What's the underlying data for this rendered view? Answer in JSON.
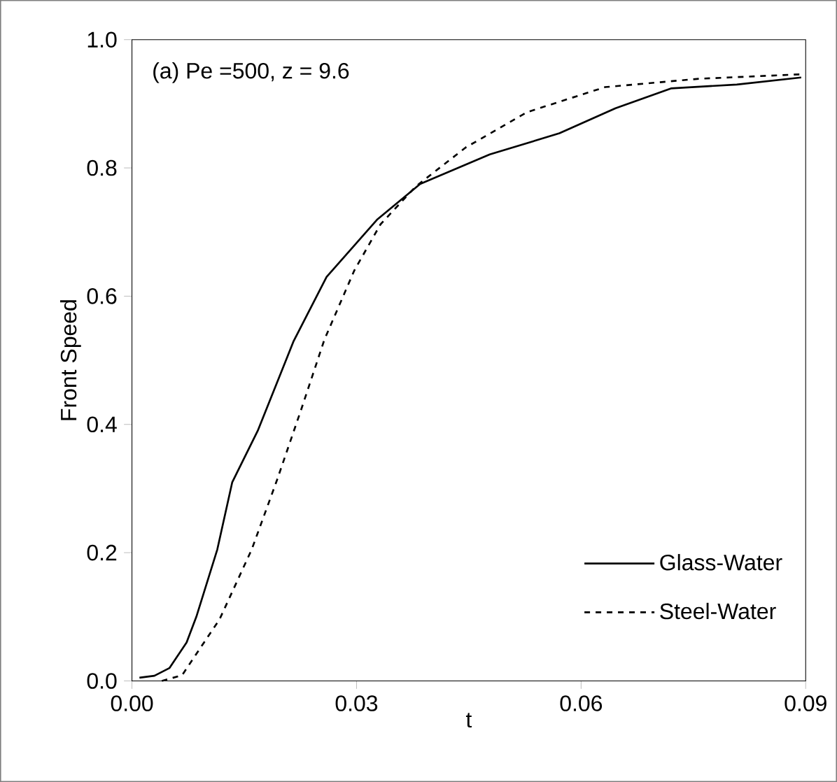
{
  "chart_data": {
    "type": "line",
    "xlabel": "t",
    "ylabel": "Front Speed",
    "annotations": [
      "(a) Pe =500, z = 9.6"
    ],
    "xlim": [
      0,
      0.09
    ],
    "ylim": [
      0,
      1.0
    ],
    "xticks": [
      {
        "value": 0,
        "label": "0.00"
      },
      {
        "value": 0.03,
        "label": "0.03"
      },
      {
        "value": 0.06,
        "label": "0.06"
      },
      {
        "value": 0.09,
        "label": "0.09"
      }
    ],
    "yticks": [
      {
        "value": 0,
        "label": "0.0"
      },
      {
        "value": 0.2,
        "label": "0.2"
      },
      {
        "value": 0.4,
        "label": "0.4"
      },
      {
        "value": 0.6,
        "label": "0.6"
      },
      {
        "value": 0.8,
        "label": "0.8"
      },
      {
        "value": 1.0,
        "label": "1.0"
      }
    ],
    "legend": "bottom right",
    "series": [
      {
        "name": "Glass-Water",
        "color": "#000000",
        "line_style": "solid",
        "x": [
          0.001,
          0.003,
          0.005,
          0.0073,
          0.0086,
          0.0114,
          0.0134,
          0.0168,
          0.0216,
          0.026,
          0.0328,
          0.0385,
          0.0478,
          0.0571,
          0.0646,
          0.072,
          0.0808,
          0.0894
        ],
        "values": [
          0.005,
          0.008,
          0.02,
          0.06,
          0.1,
          0.205,
          0.31,
          0.39,
          0.53,
          0.63,
          0.72,
          0.775,
          0.821,
          0.854,
          0.893,
          0.924,
          0.93,
          0.941
        ]
      },
      {
        "name": "Steel-Water",
        "color": "#000000",
        "line_style": "dashed",
        "x": [
          0.004,
          0.0067,
          0.0117,
          0.016,
          0.0194,
          0.0226,
          0.0257,
          0.0297,
          0.0332,
          0.0379,
          0.0446,
          0.0528,
          0.0632,
          0.0757,
          0.0894
        ],
        "values": [
          0.0,
          0.009,
          0.096,
          0.205,
          0.314,
          0.423,
          0.532,
          0.64,
          0.712,
          0.771,
          0.832,
          0.887,
          0.926,
          0.939,
          0.946
        ]
      }
    ]
  }
}
